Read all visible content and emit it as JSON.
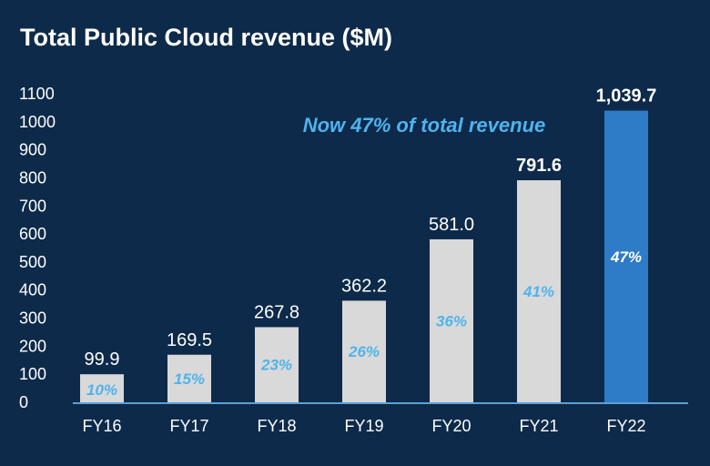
{
  "colors": {
    "background": "#0d2a4a",
    "bar": "#d9d9d9",
    "highlight_bar": "#2e7bc8",
    "axis": "#5fa0d6",
    "text": "#ffffff",
    "accent_text": "#4fb3ee"
  },
  "chart_data": {
    "type": "bar",
    "title": "Total Public Cloud revenue ($M)",
    "annotation": "Now 47% of total revenue",
    "xlabel": "",
    "ylabel": "",
    "ylim": [
      0,
      1100
    ],
    "yticks": [
      0,
      100,
      200,
      300,
      400,
      500,
      600,
      700,
      800,
      900,
      1000,
      1100
    ],
    "grid": false,
    "categories": [
      "FY16",
      "FY17",
      "FY18",
      "FY19",
      "FY20",
      "FY21",
      "FY22"
    ],
    "values": [
      99.9,
      169.5,
      267.8,
      362.2,
      581.0,
      791.6,
      1039.7
    ],
    "value_labels": [
      "99.9",
      "169.5",
      "267.8",
      "362.2",
      "581.0",
      "791.6",
      "1,039.7"
    ],
    "share_labels": [
      "10%",
      "15%",
      "23%",
      "26%",
      "36%",
      "41%",
      "47%"
    ],
    "bold_value_labels": [
      "FY21",
      "FY22"
    ],
    "highlight_category": "FY22"
  }
}
